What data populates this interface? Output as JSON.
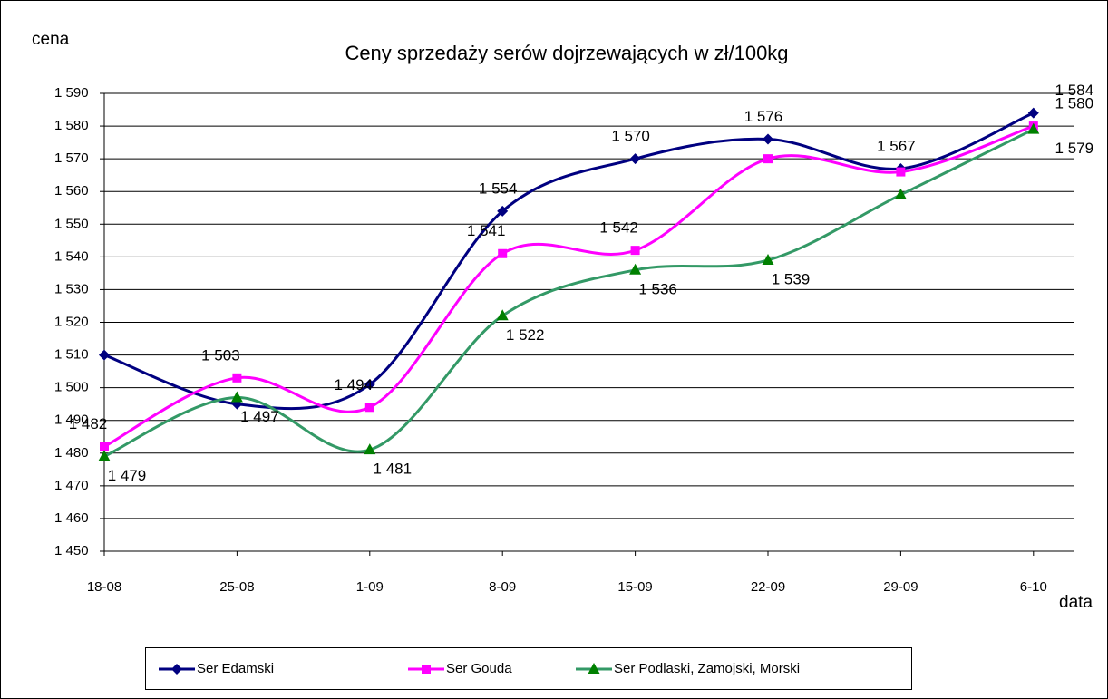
{
  "chart_data": {
    "type": "line",
    "title": "Ceny sprzedaży serów dojrzewających w zł/100kg",
    "y_label": "cena",
    "x_label": "data",
    "categories": [
      "18-08",
      "25-08",
      "1-09",
      "8-09",
      "15-09",
      "22-09",
      "29-09",
      "6-10"
    ],
    "series": [
      {
        "name": "Ser Edamski",
        "color": "#000080",
        "marker": "diamond",
        "values": [
          1510,
          1495,
          1501,
          1554,
          1570,
          1576,
          1567,
          1584
        ],
        "value_labels": [
          null,
          null,
          null,
          "1 554",
          "1 570",
          "1 576",
          "1 567",
          "1 584"
        ]
      },
      {
        "name": "Ser Gouda",
        "color": "#ff00ff",
        "marker": "square",
        "values": [
          1482,
          1503,
          1494,
          1541,
          1542,
          1570,
          1566,
          1580
        ],
        "value_labels": [
          "1 482",
          "1 503",
          "1 494",
          "1 541",
          "1 542",
          null,
          null,
          "1 580"
        ]
      },
      {
        "name": "Ser Podlaski, Zamojski, Morski",
        "color": "#339966",
        "marker": "triangle",
        "values": [
          1479,
          1497,
          1481,
          1522,
          1536,
          1539,
          1559,
          1579
        ],
        "value_labels": [
          "1 479",
          "1 497",
          "1 481",
          "1 522",
          "1 536",
          "1 539",
          null,
          "1 579"
        ]
      }
    ],
    "ylim": [
      1450,
      1590
    ],
    "yticks": [
      {
        "value": 1450,
        "label": "1 450"
      },
      {
        "value": 1460,
        "label": "1 460"
      },
      {
        "value": 1470,
        "label": "1 470"
      },
      {
        "value": 1480,
        "label": "1 480"
      },
      {
        "value": 1490,
        "label": "1 490"
      },
      {
        "value": 1500,
        "label": "1 500"
      },
      {
        "value": 1510,
        "label": "1 510"
      },
      {
        "value": 1520,
        "label": "1 520"
      },
      {
        "value": 1530,
        "label": "1 530"
      },
      {
        "value": 1540,
        "label": "1 540"
      },
      {
        "value": 1550,
        "label": "1 550"
      },
      {
        "value": 1560,
        "label": "1 560"
      },
      {
        "value": 1570,
        "label": "1 570"
      },
      {
        "value": 1580,
        "label": "1 580"
      },
      {
        "value": 1590,
        "label": "1 590"
      }
    ],
    "grid": true,
    "smooth": true,
    "legend": "bottom"
  }
}
